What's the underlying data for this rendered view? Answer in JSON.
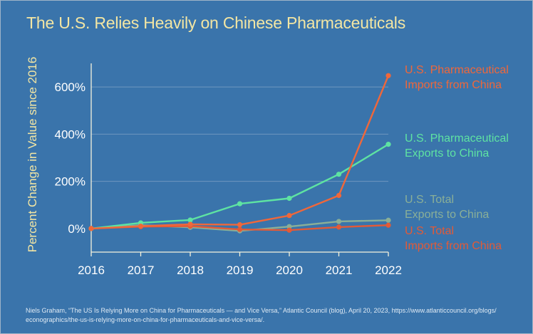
{
  "title": "The U.S. Relies Heavily on Chinese Pharmaceuticals",
  "chart_data": {
    "type": "line",
    "title": "The U.S. Relies Heavily on Chinese Pharmaceuticals",
    "xlabel": "",
    "ylabel": "Percent Change in Value since 2016",
    "x": [
      "2016",
      "2017",
      "2018",
      "2019",
      "2020",
      "2021",
      "2022"
    ],
    "ylim": [
      -100,
      700
    ],
    "yticks": [
      0,
      200,
      400,
      600
    ],
    "ytick_labels": [
      "0%",
      "200%",
      "400%",
      "600%"
    ],
    "grid": true,
    "series": [
      {
        "name": "U.S. Pharmaceutical Imports from China",
        "label_lines": [
          "U.S. Pharmaceutical",
          "Imports from China"
        ],
        "color": "#f0673a",
        "values": [
          0,
          10,
          18,
          16,
          55,
          140,
          648
        ]
      },
      {
        "name": "U.S. Pharmaceutical Exports to China",
        "label_lines": [
          "U.S. Pharmaceutical",
          "Exports to China"
        ],
        "color": "#5ee3a2",
        "values": [
          0,
          24,
          36,
          105,
          128,
          230,
          357
        ]
      },
      {
        "name": "U.S. Total Exports to China",
        "label_lines": [
          "U.S. Total",
          "Exports to China"
        ],
        "color": "#8aaf97",
        "values": [
          0,
          14,
          5,
          -10,
          8,
          30,
          35
        ]
      },
      {
        "name": "U.S. Total Imports from China",
        "label_lines": [
          "U.S. Total",
          "Imports from China"
        ],
        "color": "#e35a37",
        "values": [
          0,
          8,
          10,
          -4,
          -7,
          6,
          14
        ]
      }
    ]
  },
  "source": {
    "line1": "Niels Graham, “The US Is Relying More on China for Pharmaceuticals — and Vice Versa,” Atlantic Council (blog), April 20, 2023, https://www.atlanticcouncil.org/blogs/",
    "line2": "econographics/the-us-is-relying-more-on-china-for-pharmaceuticals-and-vice-versa/."
  }
}
